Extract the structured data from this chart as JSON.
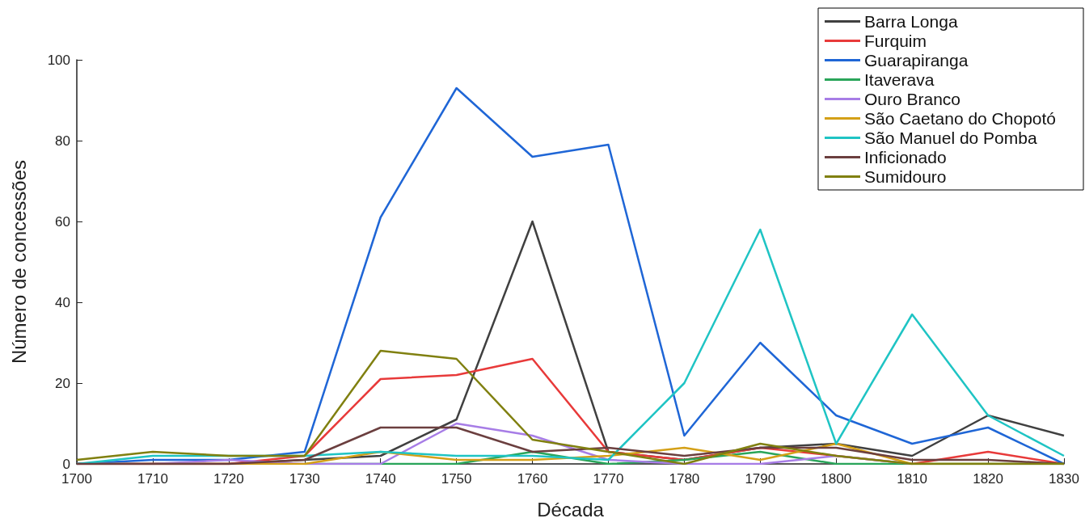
{
  "chart_data": {
    "type": "line",
    "xlabel": "Década",
    "ylabel": "Número de concessões",
    "x": [
      1700,
      1710,
      1720,
      1730,
      1740,
      1750,
      1760,
      1770,
      1780,
      1790,
      1800,
      1810,
      1820,
      1830
    ],
    "xlim": [
      1700,
      1830
    ],
    "xticks": [
      1700,
      1710,
      1720,
      1730,
      1740,
      1750,
      1760,
      1770,
      1780,
      1790,
      1800,
      1810,
      1820,
      1830
    ],
    "ylim": [
      0,
      100
    ],
    "yticks": [
      0,
      20,
      40,
      60,
      80,
      100
    ],
    "grid": false,
    "legend": "top right",
    "marker": "none",
    "line_style": "solid",
    "series": [
      {
        "name": "Barra Longa",
        "color": "#404040",
        "values": [
          0,
          0,
          0,
          1,
          2,
          11,
          60,
          3,
          1,
          4,
          5,
          2,
          12,
          7
        ]
      },
      {
        "name": "Furquim",
        "color": "#e83a3a",
        "values": [
          0,
          0,
          0,
          2,
          21,
          22,
          26,
          3,
          1,
          4,
          2,
          0,
          3,
          0
        ]
      },
      {
        "name": "Guarapiranga",
        "color": "#1f66d6",
        "values": [
          0,
          1,
          1,
          3,
          61,
          93,
          76,
          79,
          7,
          30,
          12,
          5,
          9,
          0
        ]
      },
      {
        "name": "Itaverava",
        "color": "#2aa55a",
        "values": [
          null,
          null,
          null,
          0,
          0,
          0,
          3,
          0,
          1,
          3,
          0,
          0,
          0,
          0
        ]
      },
      {
        "name": "Ouro Branco",
        "color": "#a77de6",
        "values": [
          0,
          0,
          1,
          0,
          0,
          10,
          7,
          1,
          0,
          0,
          2,
          0,
          null,
          null
        ]
      },
      {
        "name": "São Caetano do Chopotó",
        "color": "#d4a017",
        "values": [
          0,
          0,
          0,
          0,
          3,
          1,
          1,
          2,
          4,
          1,
          5,
          0,
          0,
          0
        ]
      },
      {
        "name": "São Manuel do Pomba",
        "color": "#1fc4c4",
        "values": [
          0,
          2,
          2,
          2,
          3,
          2,
          2,
          1,
          20,
          58,
          5,
          37,
          12,
          2
        ]
      },
      {
        "name": "Inficionado",
        "color": "#6b3f3f",
        "values": [
          0,
          0,
          0,
          1,
          9,
          9,
          3,
          4,
          2,
          4,
          4,
          1,
          1,
          0
        ]
      },
      {
        "name": "Sumidouro",
        "color": "#808010",
        "values": [
          1,
          3,
          2,
          2,
          28,
          26,
          6,
          3,
          0,
          5,
          2,
          0,
          0,
          0
        ]
      }
    ]
  }
}
